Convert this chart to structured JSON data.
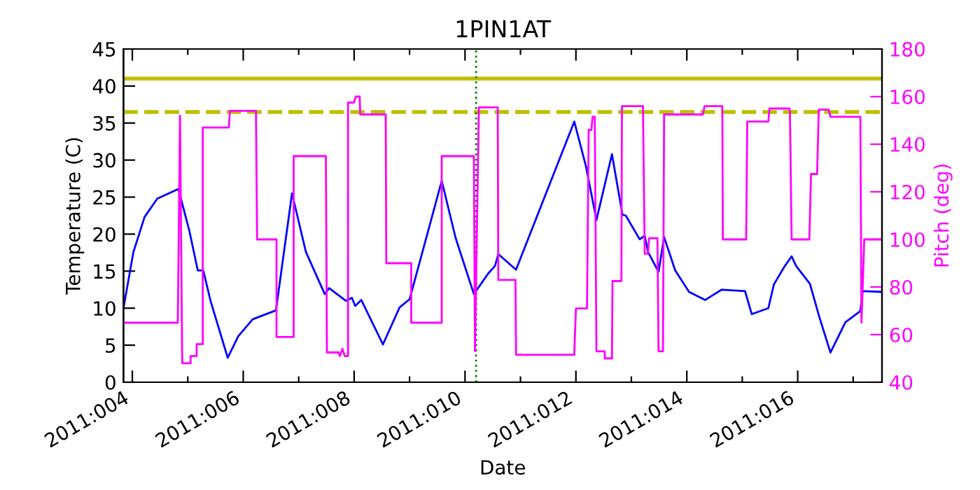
{
  "chart_data": {
    "type": "line",
    "title": "1PIN1AT",
    "xlabel": "Date",
    "ylabel": "Temperature (C)",
    "y2label": "Pitch (deg)",
    "xlim": [
      "2011-01-03T20:10",
      "2011-01-17T12:29"
    ],
    "xticks": [
      {
        "value": "2011-01-04",
        "label": "2011:004"
      },
      {
        "value": "2011-01-05",
        "label": null
      },
      {
        "value": "2011-01-06",
        "label": "2011:006"
      },
      {
        "value": "2011-01-07",
        "label": null
      },
      {
        "value": "2011-01-08",
        "label": "2011:008"
      },
      {
        "value": "2011-01-09",
        "label": null
      },
      {
        "value": "2011-01-10",
        "label": "2011:010"
      },
      {
        "value": "2011-01-11",
        "label": null
      },
      {
        "value": "2011-01-12",
        "label": "2011:012"
      },
      {
        "value": "2011-01-13",
        "label": null
      },
      {
        "value": "2011-01-14",
        "label": "2011:014"
      },
      {
        "value": "2011-01-15",
        "label": null
      },
      {
        "value": "2011-01-16",
        "label": "2011:016"
      },
      {
        "value": "2011-01-17",
        "label": null
      }
    ],
    "ylim": [
      0,
      45
    ],
    "yticks": [
      0,
      5,
      10,
      15,
      20,
      25,
      30,
      35,
      40,
      45
    ],
    "y2lim": [
      40,
      180
    ],
    "y2ticks": [
      40,
      60,
      80,
      100,
      120,
      140,
      160,
      180
    ],
    "grid": false,
    "legend": false,
    "marker": "none",
    "line_style": "solid",
    "series": [
      {
        "color": "#0000ff",
        "x": [
          "2011-01-03T20:10",
          "2011-01-04T00:29",
          "2011-01-04T05:17",
          "2011-01-04T10:48",
          "2011-01-04T19:55",
          "2011-01-05T00:43",
          "2011-01-05T04:19",
          "2011-01-05T06:43",
          "2011-01-05T09:50",
          "2011-01-05T17:17",
          "2011-01-05T21:50",
          "2011-01-06T04:05",
          "2011-01-06T14:10",
          "2011-01-06T21:07",
          "2011-01-07T03:07",
          "2011-01-07T11:17",
          "2011-01-07T13:12",
          "2011-01-07T20:24",
          "2011-01-07T23:02",
          "2011-01-08T00:29",
          "2011-01-08T03:07",
          "2011-01-08T12:29",
          "2011-01-08T19:41",
          "2011-01-09T00:00",
          "2011-01-09T13:55",
          "2011-01-09T19:55",
          "2011-01-10T03:50",
          "2011-01-10T10:05",
          "2011-01-10T12:58",
          "2011-01-10T14:24",
          "2011-01-10T22:05",
          "2011-01-11T23:17",
          "2011-01-12T04:19",
          "2011-01-12T08:53",
          "2011-01-12T15:36",
          "2011-01-12T20:10",
          "2011-01-12T21:36",
          "2011-01-13T03:36",
          "2011-01-13T05:46",
          "2011-01-13T07:12",
          "2011-01-13T11:46",
          "2011-01-13T14:10",
          "2011-01-13T18:58",
          "2011-01-14T00:58",
          "2011-01-14T07:55",
          "2011-01-14T15:07",
          "2011-01-15T01:12",
          "2011-01-15T04:05",
          "2011-01-15T11:17",
          "2011-01-15T13:41",
          "2011-01-15T18:14",
          "2011-01-15T21:22",
          "2011-01-15T23:17",
          "2011-01-16T05:17",
          "2011-01-16T09:22",
          "2011-01-16T14:10",
          "2011-01-16T20:38",
          "2011-01-17T03:07",
          "2011-01-17T04:05",
          "2011-01-17T12:00"
        ],
        "values": [
          10,
          17.6,
          22.3,
          24.8,
          26.1,
          20.4,
          15.1,
          15.1,
          11,
          3.3,
          6.2,
          8.5,
          9.7,
          25.5,
          17.6,
          11.9,
          12.7,
          11,
          11.4,
          10.3,
          11.1,
          5.1,
          10.1,
          11.2,
          27.2,
          19.5,
          11.9,
          14.7,
          15.7,
          17.3,
          15.2,
          35.2,
          29.2,
          21.9,
          30.8,
          22.6,
          22.5,
          19.3,
          19.8,
          17.6,
          14.9,
          19.6,
          15.1,
          12.2,
          11.1,
          12.5,
          12.3,
          9.2,
          10,
          13.2,
          15.6,
          17,
          15.7,
          13.3,
          8.8,
          4,
          8.1,
          9.6,
          12.3,
          12.2
        ]
      },
      {
        "color": "#ff00ff",
        "axis": "y2",
        "x": [
          "2011-01-03T20:10",
          "2011-01-04T19:41",
          "2011-01-04T20:38",
          "2011-01-04T21:36",
          "2011-01-05T01:12",
          "2011-01-05T01:12",
          "2011-01-05T03:50",
          "2011-01-05T03:50",
          "2011-01-05T06:29",
          "2011-01-05T06:29",
          "2011-01-05T17:46",
          "2011-01-05T18:14",
          "2011-01-06T05:31",
          "2011-01-06T06:00",
          "2011-01-06T14:24",
          "2011-01-06T14:24",
          "2011-01-06T21:50",
          "2011-01-06T21:50",
          "2011-01-07T11:46",
          "2011-01-07T12:14",
          "2011-01-07T17:17",
          "2011-01-07T17:46",
          "2011-01-07T18:58",
          "2011-01-07T19:55",
          "2011-01-07T21:22",
          "2011-01-07T21:22",
          "2011-01-08T00:00",
          "2011-01-08T00:43",
          "2011-01-08T02:24",
          "2011-01-08T02:38",
          "2011-01-08T13:41",
          "2011-01-08T13:55",
          "2011-01-09T00:43",
          "2011-01-09T00:43",
          "2011-01-09T13:55",
          "2011-01-09T13:55",
          "2011-01-10T03:50",
          "2011-01-10T04:19",
          "2011-01-10T06:00",
          "2011-01-10T14:10",
          "2011-01-10T14:24",
          "2011-01-10T21:50",
          "2011-01-10T22:05",
          "2011-01-11T23:17",
          "2011-01-12T00:00",
          "2011-01-12T04:48",
          "2011-01-12T05:31",
          "2011-01-12T06:43",
          "2011-01-12T07:12",
          "2011-01-12T08:10",
          "2011-01-12T08:53",
          "2011-01-12T12:29",
          "2011-01-12T12:29",
          "2011-01-12T15:36",
          "2011-01-12T15:50",
          "2011-01-12T19:41",
          "2011-01-12T19:55",
          "2011-01-13T05:02",
          "2011-01-13T05:46",
          "2011-01-13T07:12",
          "2011-01-13T07:41",
          "2011-01-13T11:17",
          "2011-01-13T11:46",
          "2011-01-13T13:41",
          "2011-01-13T14:10",
          "2011-01-14T06:58",
          "2011-01-14T07:41",
          "2011-01-14T15:22",
          "2011-01-14T15:36",
          "2011-01-15T01:41",
          "2011-01-15T02:10",
          "2011-01-15T11:17",
          "2011-01-15T11:46",
          "2011-01-15T20:24",
          "2011-01-15T20:38",
          "2011-01-15T21:22",
          "2011-01-16T05:02",
          "2011-01-16T05:46",
          "2011-01-16T08:24",
          "2011-01-16T09:07",
          "2011-01-16T13:26",
          "2011-01-16T14:10",
          "2011-01-17T03:07",
          "2011-01-17T03:36",
          "2011-01-17T04:48",
          "2011-01-17T12:00"
        ],
        "values": [
          65,
          65,
          152,
          48,
          48,
          51,
          51,
          56,
          56,
          147,
          147,
          154,
          154,
          100,
          100,
          59,
          59,
          135,
          135,
          52.5,
          52.5,
          51,
          54,
          51,
          51,
          157.5,
          157.5,
          160,
          160,
          152.5,
          152.5,
          90,
          90,
          65,
          65,
          135,
          135,
          53,
          155.5,
          155.5,
          83,
          83,
          51.5,
          51.5,
          71,
          71,
          146,
          146,
          151.5,
          151.5,
          53,
          53,
          50,
          50,
          82.5,
          82.5,
          156,
          156,
          94,
          94,
          100.5,
          100.5,
          53,
          53,
          152.5,
          152.5,
          156,
          156,
          100,
          100,
          149.5,
          149.5,
          155,
          155,
          153.5,
          100,
          100,
          127.5,
          127.5,
          154.5,
          154.5,
          151.5,
          151.5,
          65,
          100,
          100
        ]
      }
    ],
    "ref_lines": [
      {
        "axis": "y",
        "value": 41,
        "color": "#bfbf00",
        "line_style": "solid"
      },
      {
        "axis": "y",
        "value": 36.5,
        "color": "#bfbf00",
        "line_style": "dashed"
      },
      {
        "axis": "x",
        "value": "2011-01-10T04:48",
        "color": "#008000",
        "line_style": "dotted"
      }
    ]
  }
}
